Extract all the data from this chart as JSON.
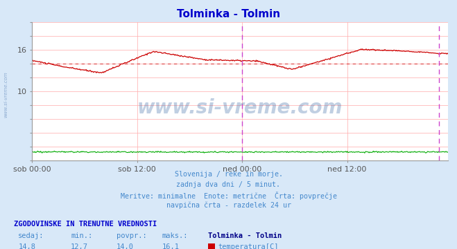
{
  "title": "Tolminka - Tolmin",
  "title_color": "#0000cc",
  "bg_color": "#d8e8f8",
  "plot_bg_color": "#ffffff",
  "grid_color": "#ffb0b0",
  "ylim": [
    0,
    20
  ],
  "xlabel_ticks": [
    "sob 00:00",
    "sob 12:00",
    "ned 00:00",
    "ned 12:00"
  ],
  "n_points": 576,
  "avg_temp": 14.0,
  "min_temp": 12.7,
  "max_temp": 16.1,
  "current_temp": 14.8,
  "avg_flow": 1.3,
  "min_flow": 1.2,
  "max_flow": 1.3,
  "current_flow": 1.2,
  "temp_line_color": "#cc0000",
  "flow_line_color": "#00aa00",
  "avg_line_color": "#cc0000",
  "vline_color": "#cc44cc",
  "watermark_text": "www.si-vreme.com",
  "watermark_color": "#3060a0",
  "watermark_alpha": 0.3,
  "side_text": "www.si-vreme.com",
  "footer_lines": [
    "Slovenija / reke in morje.",
    "zadnja dva dni / 5 minut.",
    "Meritve: minimalne  Enote: metrične  Črta: povprečje",
    "navpična črta - razdelek 24 ur"
  ],
  "footer_color": "#4488cc",
  "table_header_color": "#0000cc",
  "table_label_color": "#4488cc",
  "table_value_color": "#4488cc",
  "table_station_color": "#000088",
  "legend_temp_color": "#cc0000",
  "legend_flow_color": "#00aa00"
}
